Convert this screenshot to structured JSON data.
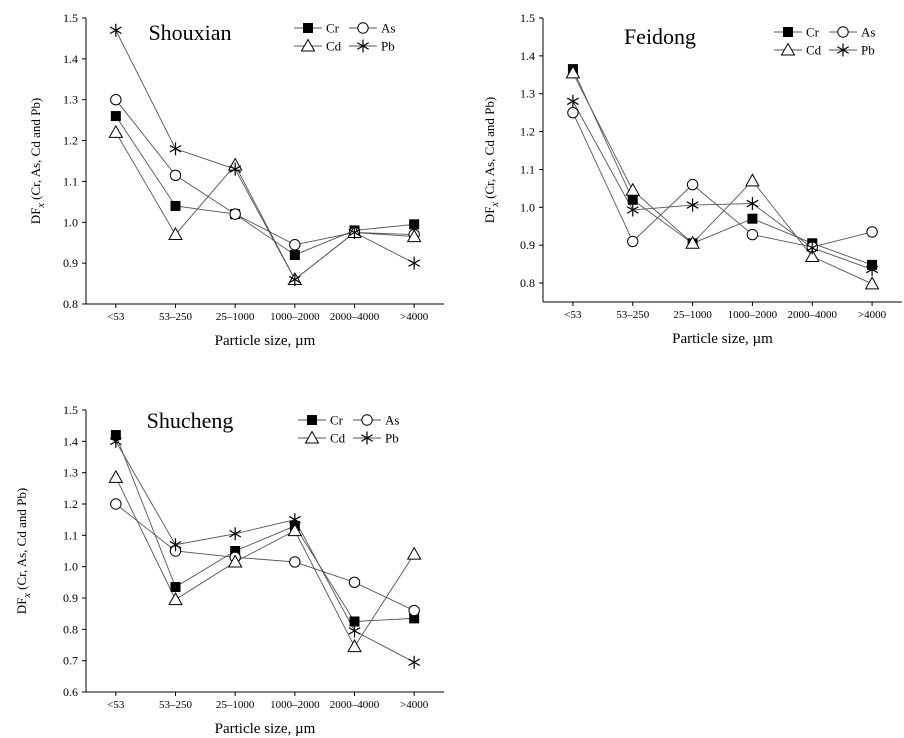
{
  "figure": {
    "marker_color": "#000000",
    "line_color": "#555555",
    "background": "#ffffff"
  },
  "chart_data": [
    {
      "type": "line",
      "title": "Shouxian",
      "xlabel": "Particle size, µm",
      "ylabel_main": "DF",
      "ylabel_sub": "x",
      "ylabel_rest": " (Cr, As, Cd and Pb)",
      "categories": [
        "<53",
        "53–250",
        "25–1000",
        "1000–2000",
        "2000–4000",
        ">4000"
      ],
      "ylim": [
        0.8,
        1.5
      ],
      "yticks": [
        "0.8",
        "0.9",
        "1.0",
        "1.1",
        "1.2",
        "1.3",
        "1.4",
        "1.5"
      ],
      "legend_position": "top-right",
      "series": [
        {
          "name": "Cr",
          "marker": "square",
          "values": [
            1.26,
            1.04,
            1.02,
            0.92,
            0.98,
            0.995
          ]
        },
        {
          "name": "As",
          "marker": "circle",
          "values": [
            1.3,
            1.115,
            1.02,
            0.945,
            0.975,
            0.97
          ]
        },
        {
          "name": "Cd",
          "marker": "triangle",
          "values": [
            1.22,
            0.97,
            1.14,
            0.86,
            0.975,
            0.965
          ]
        },
        {
          "name": "Pb",
          "marker": "asterisk",
          "values": [
            1.47,
            1.18,
            1.13,
            0.86,
            0.975,
            0.9
          ]
        }
      ]
    },
    {
      "type": "line",
      "title": "Feidong",
      "xlabel": "Particle size, µm",
      "ylabel_main": "DF",
      "ylabel_sub": "x",
      "ylabel_rest": " (Cr, As, Cd and Pb)",
      "categories": [
        "<53",
        "53–250",
        "25–1000",
        "1000–2000",
        "2000–4000",
        ">4000"
      ],
      "ylim": [
        0.75,
        1.5
      ],
      "yticks": [
        "0.8",
        "0.9",
        "1.0",
        "1.1",
        "1.2",
        "1.3",
        "1.4",
        "1.5"
      ],
      "legend_position": "top-right",
      "series": [
        {
          "name": "Cr",
          "marker": "square",
          "values": [
            1.365,
            1.02,
            0.905,
            0.97,
            0.905,
            0.848
          ]
        },
        {
          "name": "As",
          "marker": "circle",
          "values": [
            1.25,
            0.91,
            1.06,
            0.928,
            0.895,
            0.935
          ]
        },
        {
          "name": "Cd",
          "marker": "triangle",
          "values": [
            1.355,
            1.045,
            0.905,
            1.07,
            0.87,
            0.798
          ]
        },
        {
          "name": "Pb",
          "marker": "asterisk",
          "values": [
            1.28,
            0.993,
            1.006,
            1.01,
            0.893,
            0.836
          ]
        }
      ]
    },
    {
      "type": "line",
      "title": "Shucheng",
      "xlabel": "Particle size, µm",
      "ylabel_main": "DF",
      "ylabel_sub": "x",
      "ylabel_rest": " (Cr, As, Cd and Pb)",
      "categories": [
        "<53",
        "53–250",
        "25–1000",
        "1000–2000",
        "2000–4000",
        ">4000"
      ],
      "ylim": [
        0.6,
        1.5
      ],
      "yticks": [
        "0.6",
        "0.7",
        "0.8",
        "0.9",
        "1.0",
        "1.1",
        "1.2",
        "1.3",
        "1.4",
        "1.5"
      ],
      "legend_position": "top-right",
      "series": [
        {
          "name": "Cr",
          "marker": "square",
          "values": [
            1.42,
            0.935,
            1.05,
            1.13,
            0.825,
            0.835
          ]
        },
        {
          "name": "As",
          "marker": "circle",
          "values": [
            1.2,
            1.05,
            1.03,
            1.015,
            0.95,
            0.86
          ]
        },
        {
          "name": "Cd",
          "marker": "triangle",
          "values": [
            1.285,
            0.895,
            1.015,
            1.115,
            0.745,
            1.04
          ]
        },
        {
          "name": "Pb",
          "marker": "asterisk",
          "values": [
            1.4,
            1.07,
            1.105,
            1.15,
            0.795,
            0.695
          ]
        }
      ]
    }
  ]
}
